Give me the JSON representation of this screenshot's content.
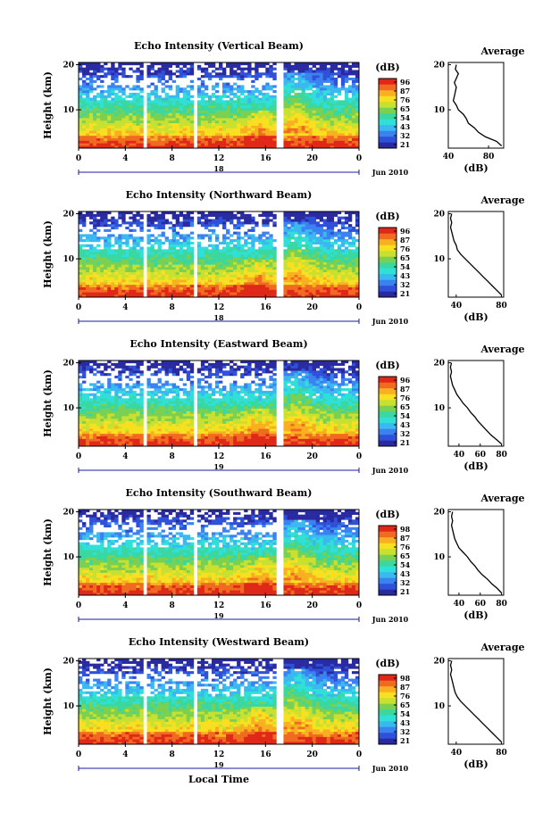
{
  "colors": {
    "colorbar": [
      "#2a2aa0",
      "#2f50d8",
      "#3a82f0",
      "#3ab8f0",
      "#2fe0d8",
      "#3ad7a0",
      "#7ad050",
      "#c8e030",
      "#f8e020",
      "#f8b020",
      "#f06a20",
      "#e02818"
    ]
  },
  "chart_data": [
    {
      "type": "heatmap",
      "title": "Echo Intensity (Vertical Beam)",
      "ylabel": "Height (km)",
      "yticks": [
        "20",
        "10"
      ],
      "xticks": [
        "0",
        "4",
        "8",
        "12",
        "16",
        "20",
        "0"
      ],
      "day": "18",
      "month_label": "Jun 2010",
      "xlim": [
        0,
        24
      ],
      "ylim": [
        1.5,
        20.5
      ],
      "gaps": [
        [
          5.6,
          5.9
        ],
        [
          10.0,
          10.2
        ],
        [
          17.0,
          17.4
        ]
      ],
      "colorbar": {
        "unit": "(dB)",
        "ticks": [
          "96",
          "87",
          "76",
          "65",
          "54",
          "43",
          "32",
          "21"
        ]
      },
      "average": {
        "title": "Average",
        "xlabel": "(dB)",
        "xticks": [
          "40",
          "80"
        ],
        "xlim": [
          40,
          95
        ],
        "ylim": [
          1.5,
          20.5
        ],
        "yticks": [
          "20",
          "10"
        ],
        "height": [
          2,
          3,
          4,
          5,
          6,
          7,
          8,
          9,
          10,
          11,
          12,
          13,
          14,
          15,
          16,
          17,
          18,
          19,
          20
        ],
        "db": [
          93,
          88,
          77,
          70,
          66,
          60,
          58,
          55,
          50,
          48,
          45,
          46,
          47,
          48,
          46,
          48,
          50,
          47,
          48
        ]
      }
    },
    {
      "type": "heatmap",
      "title": "Echo Intensity (Northward Beam)",
      "ylabel": "Height (km)",
      "yticks": [
        "20",
        "10"
      ],
      "xticks": [
        "0",
        "4",
        "8",
        "12",
        "16",
        "20",
        "0"
      ],
      "day": "18",
      "month_label": "Jun 2010",
      "xlim": [
        0,
        24
      ],
      "ylim": [
        1.5,
        20.5
      ],
      "gaps": [
        [
          5.6,
          5.9
        ],
        [
          10.0,
          10.2
        ],
        [
          17.0,
          17.4
        ]
      ],
      "colorbar": {
        "unit": "(dB)",
        "ticks": [
          "96",
          "87",
          "76",
          "65",
          "54",
          "43",
          "32",
          "21"
        ]
      },
      "average": {
        "title": "Average",
        "xlabel": "(dB)",
        "xticks": [
          "40",
          "80"
        ],
        "xlim": [
          33,
          82
        ],
        "ylim": [
          1.5,
          20.5
        ],
        "yticks": [
          "20",
          "10"
        ],
        "height": [
          2,
          3,
          4,
          5,
          6,
          7,
          8,
          9,
          10,
          11,
          12,
          13,
          14,
          15,
          16,
          17,
          18,
          19,
          20
        ],
        "db": [
          80,
          76,
          72,
          68,
          64,
          60,
          56,
          52,
          48,
          44,
          41,
          40,
          38,
          37,
          36,
          35,
          36,
          35,
          36
        ]
      }
    },
    {
      "type": "heatmap",
      "title": "Echo Intensity (Eastward Beam)",
      "ylabel": "Height (km)",
      "yticks": [
        "20",
        "10"
      ],
      "xticks": [
        "0",
        "4",
        "8",
        "12",
        "16",
        "20",
        "0"
      ],
      "day": "19",
      "month_label": "Jun 2010",
      "xlim": [
        0,
        24
      ],
      "ylim": [
        1.5,
        20.5
      ],
      "gaps": [
        [
          5.6,
          5.9
        ],
        [
          10.0,
          10.2
        ],
        [
          17.0,
          17.4
        ]
      ],
      "colorbar": {
        "unit": "(dB)",
        "ticks": [
          "96",
          "87",
          "76",
          "65",
          "54",
          "43",
          "32",
          "21"
        ]
      },
      "average": {
        "title": "Average",
        "xlabel": "(dB)",
        "xticks": [
          "40",
          "60",
          "80"
        ],
        "xlim": [
          30,
          82
        ],
        "ylim": [
          1.5,
          20.5
        ],
        "yticks": [
          "20",
          "10"
        ],
        "height": [
          2,
          3,
          4,
          5,
          6,
          7,
          8,
          9,
          10,
          11,
          12,
          13,
          14,
          15,
          16,
          17,
          18,
          19,
          20
        ],
        "db": [
          80,
          75,
          70,
          66,
          62,
          58,
          55,
          51,
          48,
          44,
          41,
          38,
          36,
          34,
          33,
          32,
          33,
          32,
          33
        ]
      }
    },
    {
      "type": "heatmap",
      "title": "Echo Intensity (Southward Beam)",
      "ylabel": "Height (km)",
      "yticks": [
        "20",
        "10"
      ],
      "xticks": [
        "0",
        "4",
        "8",
        "12",
        "16",
        "20",
        "0"
      ],
      "day": "19",
      "month_label": "Jun 2010",
      "xlim": [
        0,
        24
      ],
      "ylim": [
        1.5,
        20.5
      ],
      "gaps": [
        [
          5.6,
          5.9
        ],
        [
          10.0,
          10.2
        ],
        [
          17.0,
          17.4
        ]
      ],
      "colorbar": {
        "unit": "(dB)",
        "ticks": [
          "98",
          "87",
          "76",
          "65",
          "54",
          "43",
          "32",
          "21"
        ]
      },
      "average": {
        "title": "Average",
        "xlabel": "(dB)",
        "xticks": [
          "40",
          "60",
          "80"
        ],
        "xlim": [
          30,
          82
        ],
        "ylim": [
          1.5,
          20.5
        ],
        "yticks": [
          "20",
          "10"
        ],
        "height": [
          2,
          3,
          4,
          5,
          6,
          7,
          8,
          9,
          10,
          11,
          12,
          13,
          14,
          15,
          16,
          17,
          18,
          19,
          20
        ],
        "db": [
          80,
          76,
          71,
          67,
          62,
          58,
          55,
          51,
          48,
          44,
          40,
          38,
          36,
          35,
          34,
          33,
          34,
          33,
          34
        ]
      }
    },
    {
      "type": "heatmap",
      "title": "Echo Intensity (Westward Beam)",
      "ylabel": "Height (km)",
      "yticks": [
        "20",
        "10"
      ],
      "xticks": [
        "0",
        "4",
        "8",
        "12",
        "16",
        "20",
        "0"
      ],
      "day": "19",
      "month_label": "Jun 2010",
      "xlabel": "Local Time",
      "xlim": [
        0,
        24
      ],
      "ylim": [
        1.5,
        20.5
      ],
      "gaps": [
        [
          5.6,
          5.9
        ],
        [
          10.0,
          10.2
        ],
        [
          17.0,
          17.4
        ]
      ],
      "colorbar": {
        "unit": "(dB)",
        "ticks": [
          "98",
          "87",
          "76",
          "65",
          "54",
          "43",
          "32",
          "21"
        ]
      },
      "average": {
        "title": "Average",
        "xlabel": "(dB)",
        "xticks": [
          "40",
          "80"
        ],
        "xlim": [
          33,
          82
        ],
        "ylim": [
          1.5,
          20.5
        ],
        "yticks": [
          "20",
          "10"
        ],
        "height": [
          2,
          3,
          4,
          5,
          6,
          7,
          8,
          9,
          10,
          11,
          12,
          13,
          14,
          15,
          16,
          17,
          18,
          19,
          20
        ],
        "db": [
          80,
          76,
          72,
          68,
          64,
          60,
          56,
          52,
          48,
          44,
          41,
          39,
          38,
          37,
          36,
          35,
          36,
          35,
          36
        ]
      }
    }
  ]
}
